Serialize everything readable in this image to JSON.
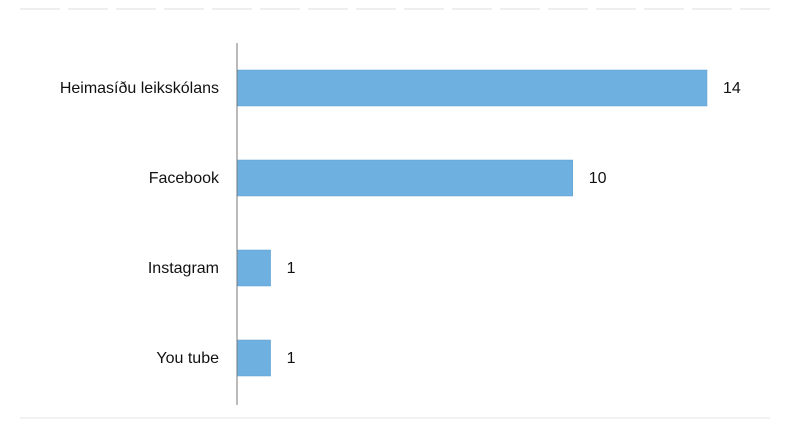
{
  "chart_data": {
    "type": "bar",
    "orientation": "horizontal",
    "categories": [
      "Heimasíðu leikskólans",
      "Facebook",
      "Instagram",
      "You tube"
    ],
    "values": [
      14,
      10,
      1,
      1
    ],
    "color": "#6eb1e1"
  }
}
